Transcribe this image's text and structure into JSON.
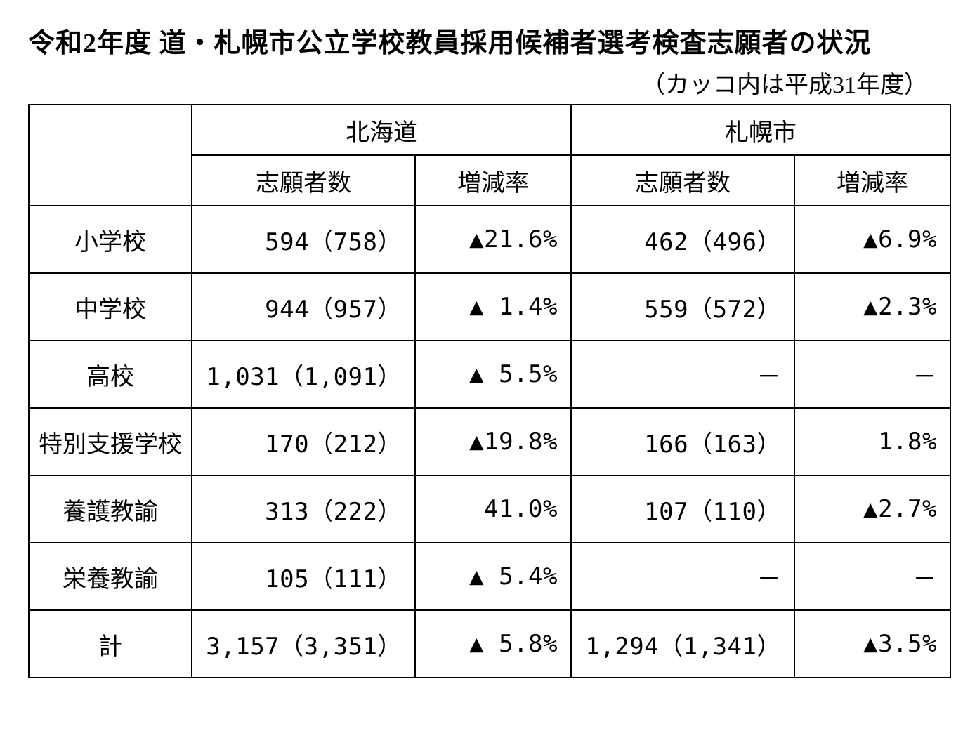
{
  "title": "令和2年度 道・札幌市公立学校教員採用候補者選考検査志願者の状況",
  "subtitle": "（カッコ内は平成31年度）",
  "colors": {
    "background": "#ffffff",
    "text": "#000000",
    "border": "#000000"
  },
  "typography": {
    "title_fontsize": 38,
    "subtitle_fontsize": 34,
    "cell_fontsize": 34,
    "font_family": "Hiragino Mincho ProN"
  },
  "table": {
    "regions": [
      {
        "name": "北海道",
        "sub": [
          "志願者数",
          "増減率"
        ]
      },
      {
        "name": "札幌市",
        "sub": [
          "志願者数",
          "増減率"
        ]
      }
    ],
    "row_labels": [
      "小学校",
      "中学校",
      "高校",
      "特別支援学校",
      "養護教諭",
      "栄養教諭",
      "計"
    ],
    "rows": [
      {
        "h_app": "594（758）",
        "h_rate": "▲21.6%",
        "s_app": "462（496）",
        "s_rate": "▲6.9%"
      },
      {
        "h_app": "944（957）",
        "h_rate": "▲ 1.4%",
        "s_app": "559（572）",
        "s_rate": "▲2.3%"
      },
      {
        "h_app": "1,031（1,091）",
        "h_rate": "▲ 5.5%",
        "s_app": "－",
        "s_rate": "－"
      },
      {
        "h_app": "170（212）",
        "h_rate": "▲19.8%",
        "s_app": "166（163）",
        "s_rate": "1.8%"
      },
      {
        "h_app": "313（222）",
        "h_rate": "41.0%",
        "s_app": "107（110）",
        "s_rate": "▲2.7%"
      },
      {
        "h_app": "105（111）",
        "h_rate": "▲ 5.4%",
        "s_app": "－",
        "s_rate": "－"
      },
      {
        "h_app": "3,157（3,351）",
        "h_rate": "▲ 5.8%",
        "s_app": "1,294（1,341）",
        "s_rate": "▲3.5%"
      }
    ]
  }
}
